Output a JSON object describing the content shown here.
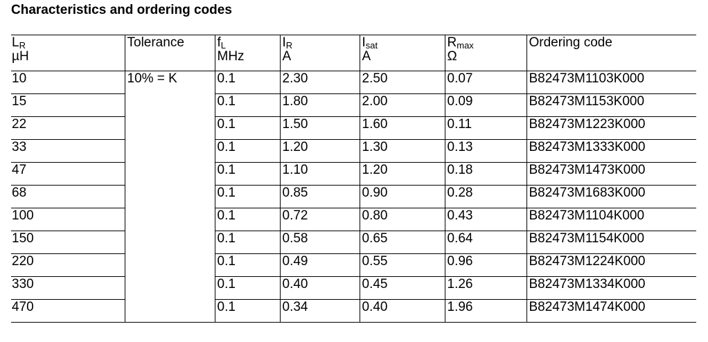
{
  "title": "Characteristics and ordering codes",
  "table": {
    "header": [
      {
        "symbol": "L",
        "sub": "R",
        "unit": "µH"
      },
      {
        "symbol": "Tolerance"
      },
      {
        "symbol": "f",
        "sub": "L",
        "unit": "MHz"
      },
      {
        "symbol": "I",
        "sub": "R",
        "unit": "A"
      },
      {
        "symbol": "I",
        "sub": "sat",
        "unit": "A"
      },
      {
        "symbol": "R",
        "sub": "max",
        "unit": "Ω"
      },
      {
        "symbol": "Ordering code"
      }
    ],
    "tolerance": "10% = K",
    "rows": [
      [
        "10",
        "0.1",
        "2.30",
        "2.50",
        "0.07",
        "B82473M1103K000"
      ],
      [
        "15",
        "0.1",
        "1.80",
        "2.00",
        "0.09",
        "B82473M1153K000"
      ],
      [
        "22",
        "0.1",
        "1.50",
        "1.60",
        "0.11",
        "B82473M1223K000"
      ],
      [
        "33",
        "0.1",
        "1.20",
        "1.30",
        "0.13",
        "B82473M1333K000"
      ],
      [
        "47",
        "0.1",
        "1.10",
        "1.20",
        "0.18",
        "B82473M1473K000"
      ],
      [
        "68",
        "0.1",
        "0.85",
        "0.90",
        "0.28",
        "B82473M1683K000"
      ],
      [
        "100",
        "0.1",
        "0.72",
        "0.80",
        "0.43",
        "B82473M1104K000"
      ],
      [
        "150",
        "0.1",
        "0.58",
        "0.65",
        "0.64",
        "B82473M1154K000"
      ],
      [
        "220",
        "0.1",
        "0.49",
        "0.55",
        "0.96",
        "B82473M1224K000"
      ],
      [
        "330",
        "0.1",
        "0.40",
        "0.45",
        "1.26",
        "B82473M1334K000"
      ],
      [
        "470",
        "0.1",
        "0.34",
        "0.40",
        "1.96",
        "B82473M1474K000"
      ]
    ]
  }
}
